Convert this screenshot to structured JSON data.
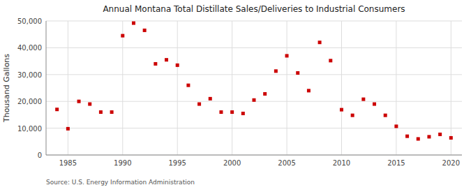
{
  "chart_data": {
    "type": "scatter",
    "title": "Annual Montana Total Distillate Sales/Deliveries to Industrial Consumers",
    "ylabel": "Thousand Gallons",
    "annotations": [
      "Source: U.S. Energy Information Administration"
    ],
    "color": "#cc0000",
    "marker": "square",
    "x": [
      1984,
      1985,
      1986,
      1987,
      1988,
      1989,
      1990,
      1991,
      1992,
      1993,
      1994,
      1995,
      1996,
      1997,
      1998,
      1999,
      2000,
      2001,
      2002,
      2003,
      2004,
      2005,
      2006,
      2007,
      2008,
      2009,
      2010,
      2011,
      2012,
      2013,
      2014,
      2015,
      2016,
      2017,
      2018,
      2019,
      2020
    ],
    "values": [
      17000,
      9800,
      20000,
      19000,
      16000,
      16000,
      44500,
      49200,
      46500,
      34000,
      35500,
      33500,
      26000,
      19000,
      21000,
      16000,
      16000,
      15500,
      20500,
      22800,
      31300,
      37000,
      30600,
      24000,
      42000,
      35200,
      16900,
      14800,
      20800,
      19000,
      14800,
      10700,
      7000,
      6000,
      6800,
      7700,
      6400
    ],
    "xlim": [
      1983,
      2021
    ],
    "ylim": [
      0,
      50000
    ],
    "xticks": [
      1985,
      1990,
      1995,
      2000,
      2005,
      2010,
      2015,
      2020
    ],
    "yticks": [
      0,
      {
        "value": 10000,
        "label": "10,000"
      },
      {
        "value": 20000,
        "label": "20,000"
      },
      {
        "value": 30000,
        "label": "30,000"
      },
      {
        "value": 40000,
        "label": "40,000"
      },
      {
        "value": 50000,
        "label": "50,000"
      }
    ],
    "grid": true
  }
}
